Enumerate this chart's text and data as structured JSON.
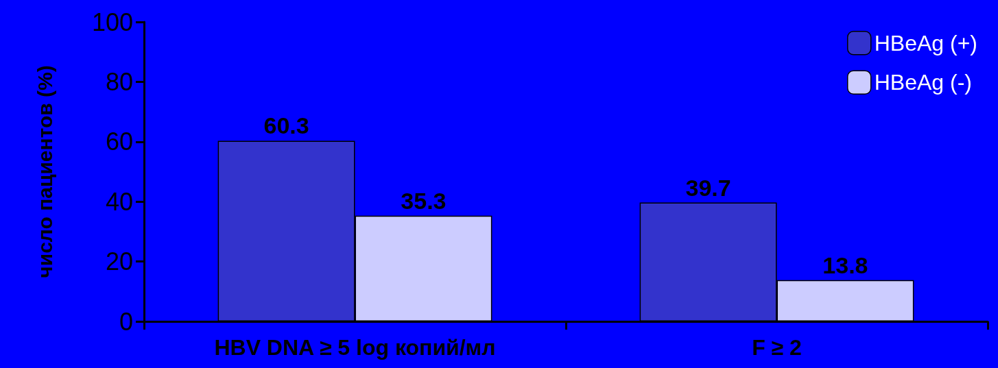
{
  "chart_data": {
    "type": "bar",
    "ylabel": "число пациентов (%)",
    "categories": [
      "HBV DNA ≥ 5 log копий/мл",
      "F ≥ 2"
    ],
    "series": [
      {
        "name": "HBeAg (+)",
        "color": "#3333cc",
        "values": [
          60.3,
          39.7
        ]
      },
      {
        "name": "HBeAg (-)",
        "color": "#ccccff",
        "values": [
          35.3,
          13.8
        ]
      }
    ],
    "ylim": [
      0,
      100
    ],
    "yticks": [
      0,
      20,
      40,
      60,
      80,
      100
    ],
    "grid": false,
    "legend": "top right",
    "data_labels": true
  }
}
